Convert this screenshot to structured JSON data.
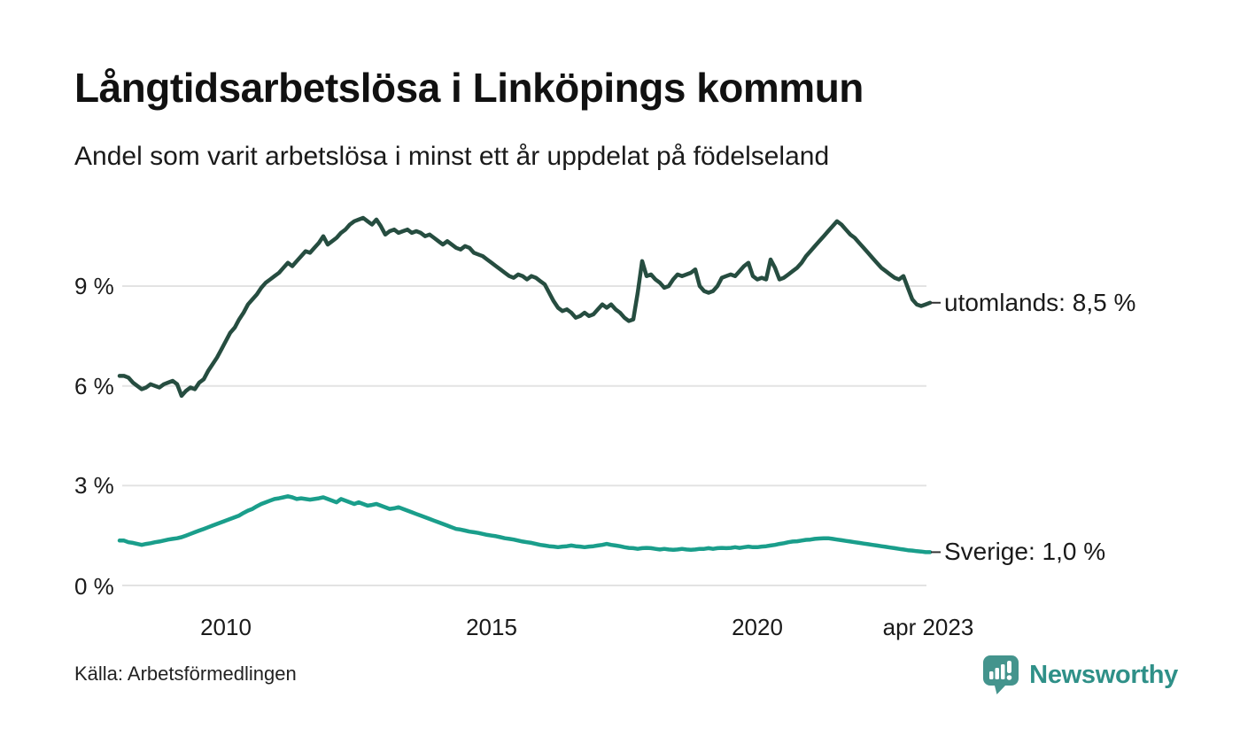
{
  "header": {
    "title": "Långtidsarbetslösa i Linköpings kommun",
    "subtitle": "Andel som varit arbetslösa i minst ett år uppdelat på födelseland"
  },
  "footer": {
    "source": "Källa: Arbetsförmedlingen",
    "brand": "Newsworthy",
    "brand_color": "#2f9088",
    "logo_color": "#44948d"
  },
  "chart_data": {
    "type": "line",
    "title": "Långtidsarbetslösa i Linköpings kommun",
    "subtitle": "Andel som varit arbetslösa i minst ett år uppdelat på födelseland",
    "unit": "%",
    "grid": "horizontal",
    "legend_position": "right-end-labels",
    "x_axis": {
      "start": "2008-01",
      "end": "2023-04",
      "frequency": "monthly",
      "range_years": [
        2008.0,
        2023.25
      ],
      "tick_labels": [
        "2010",
        "2015",
        "2020",
        "apr 2023"
      ],
      "tick_values": [
        2010,
        2015,
        2020,
        2023.25
      ]
    },
    "y_axis": {
      "tick_labels": [
        "0 %",
        "3 %",
        "6 %",
        "9 %"
      ],
      "tick_values": [
        0,
        3,
        6,
        9
      ],
      "range": [
        0,
        11.6
      ]
    },
    "series": [
      {
        "name": "utomlands",
        "end_label": "utomlands: 8,5 %",
        "last_value": 8.5,
        "color": "#264d40",
        "values": [
          6.3,
          6.3,
          6.25,
          6.1,
          6.0,
          5.9,
          5.95,
          6.05,
          6.0,
          5.95,
          6.05,
          6.1,
          6.15,
          6.05,
          5.7,
          5.85,
          5.95,
          5.9,
          6.1,
          6.2,
          6.45,
          6.65,
          6.85,
          7.1,
          7.35,
          7.6,
          7.75,
          8.0,
          8.2,
          8.45,
          8.6,
          8.75,
          8.95,
          9.1,
          9.2,
          9.3,
          9.4,
          9.55,
          9.7,
          9.6,
          9.75,
          9.9,
          10.05,
          10.0,
          10.15,
          10.3,
          10.5,
          10.25,
          10.35,
          10.45,
          10.6,
          10.7,
          10.85,
          10.95,
          11.0,
          11.05,
          10.95,
          10.85,
          11.0,
          10.8,
          10.55,
          10.65,
          10.7,
          10.6,
          10.65,
          10.7,
          10.6,
          10.65,
          10.6,
          10.5,
          10.55,
          10.45,
          10.35,
          10.25,
          10.35,
          10.25,
          10.15,
          10.1,
          10.2,
          10.15,
          10.0,
          9.95,
          9.9,
          9.8,
          9.7,
          9.6,
          9.5,
          9.4,
          9.3,
          9.25,
          9.35,
          9.3,
          9.2,
          9.3,
          9.25,
          9.15,
          9.05,
          8.8,
          8.55,
          8.35,
          8.25,
          8.3,
          8.2,
          8.05,
          8.1,
          8.2,
          8.1,
          8.15,
          8.3,
          8.45,
          8.35,
          8.45,
          8.3,
          8.2,
          8.05,
          7.95,
          8.0,
          8.8,
          9.75,
          9.3,
          9.35,
          9.2,
          9.1,
          8.95,
          9.0,
          9.2,
          9.35,
          9.3,
          9.35,
          9.4,
          9.5,
          9.0,
          8.85,
          8.8,
          8.85,
          9.0,
          9.25,
          9.3,
          9.35,
          9.3,
          9.45,
          9.6,
          9.7,
          9.3,
          9.2,
          9.25,
          9.2,
          9.8,
          9.55,
          9.2,
          9.25,
          9.35,
          9.45,
          9.55,
          9.7,
          9.9,
          10.05,
          10.2,
          10.35,
          10.5,
          10.65,
          10.8,
          10.95,
          10.85,
          10.7,
          10.55,
          10.45,
          10.3,
          10.15,
          10.0,
          9.85,
          9.7,
          9.55,
          9.45,
          9.35,
          9.25,
          9.2,
          9.3,
          8.95,
          8.6,
          8.45,
          8.4,
          8.45,
          8.5
        ]
      },
      {
        "name": "Sverige",
        "end_label": "Sverige: 1,0 %",
        "last_value": 1.0,
        "color": "#1a9e8b",
        "values": [
          1.35,
          1.35,
          1.3,
          1.28,
          1.25,
          1.22,
          1.25,
          1.27,
          1.3,
          1.32,
          1.35,
          1.38,
          1.4,
          1.42,
          1.45,
          1.5,
          1.55,
          1.6,
          1.65,
          1.7,
          1.75,
          1.8,
          1.85,
          1.9,
          1.95,
          2.0,
          2.05,
          2.1,
          2.18,
          2.25,
          2.3,
          2.38,
          2.45,
          2.5,
          2.55,
          2.6,
          2.62,
          2.65,
          2.68,
          2.65,
          2.6,
          2.62,
          2.6,
          2.58,
          2.6,
          2.62,
          2.65,
          2.6,
          2.55,
          2.5,
          2.6,
          2.55,
          2.5,
          2.45,
          2.5,
          2.45,
          2.4,
          2.42,
          2.45,
          2.4,
          2.35,
          2.3,
          2.32,
          2.35,
          2.3,
          2.25,
          2.2,
          2.15,
          2.1,
          2.05,
          2.0,
          1.95,
          1.9,
          1.85,
          1.8,
          1.75,
          1.7,
          1.68,
          1.65,
          1.62,
          1.6,
          1.58,
          1.55,
          1.52,
          1.5,
          1.48,
          1.45,
          1.42,
          1.4,
          1.38,
          1.35,
          1.32,
          1.3,
          1.28,
          1.25,
          1.22,
          1.2,
          1.18,
          1.17,
          1.15,
          1.17,
          1.18,
          1.2,
          1.18,
          1.17,
          1.15,
          1.17,
          1.18,
          1.2,
          1.22,
          1.25,
          1.22,
          1.2,
          1.18,
          1.15,
          1.13,
          1.12,
          1.1,
          1.12,
          1.13,
          1.12,
          1.1,
          1.08,
          1.1,
          1.08,
          1.07,
          1.08,
          1.1,
          1.08,
          1.07,
          1.08,
          1.1,
          1.1,
          1.12,
          1.1,
          1.12,
          1.13,
          1.12,
          1.13,
          1.15,
          1.13,
          1.15,
          1.17,
          1.15,
          1.15,
          1.17,
          1.18,
          1.2,
          1.22,
          1.25,
          1.27,
          1.3,
          1.32,
          1.33,
          1.35,
          1.37,
          1.38,
          1.4,
          1.41,
          1.42,
          1.42,
          1.4,
          1.38,
          1.36,
          1.34,
          1.32,
          1.3,
          1.28,
          1.26,
          1.24,
          1.22,
          1.2,
          1.18,
          1.16,
          1.14,
          1.12,
          1.1,
          1.08,
          1.06,
          1.05,
          1.03,
          1.02,
          1.0,
          1.0
        ]
      }
    ]
  }
}
